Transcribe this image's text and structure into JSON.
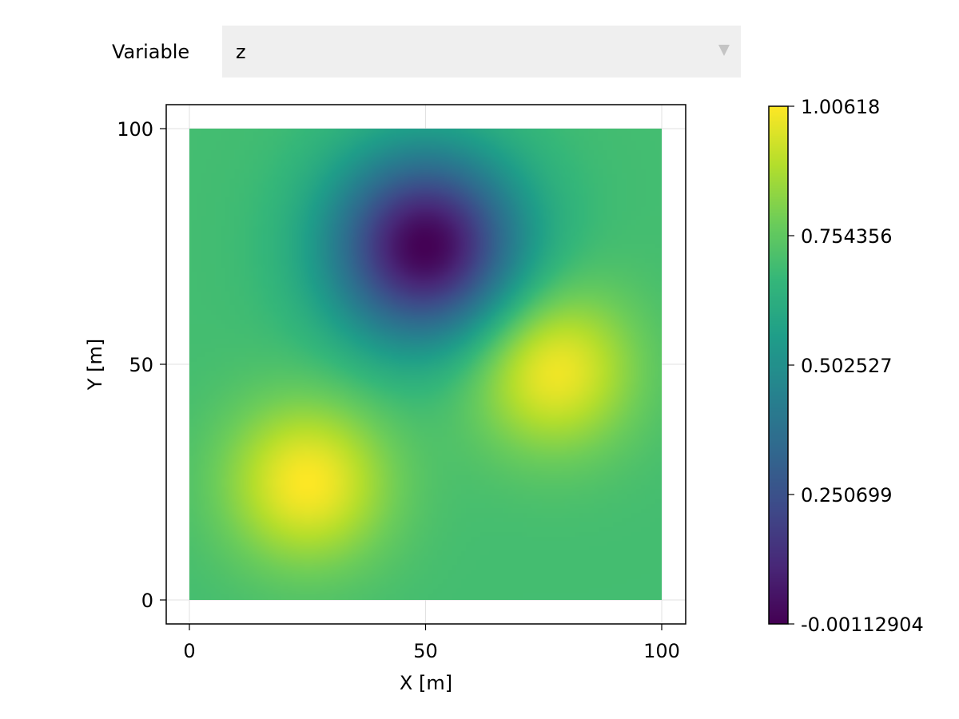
{
  "menu": {
    "label": "Variable",
    "selected": "z"
  },
  "chart_data": {
    "type": "heatmap",
    "title": "",
    "xlabel": "X [m]",
    "ylabel": "Y [m]",
    "x_range": [
      0,
      100
    ],
    "y_range": [
      0,
      100
    ],
    "xticks": [
      "0",
      "50",
      "100"
    ],
    "yticks": [
      "0",
      "50",
      "100"
    ],
    "grid": true,
    "colormap": "viridis",
    "colorbar": {
      "range": [
        -0.00112904,
        1.00618
      ],
      "ticks": [
        "1.00618",
        "0.754356",
        "0.502527",
        "0.250699",
        "-0.00112904"
      ]
    },
    "features": [
      {
        "kind": "peak",
        "x": 25,
        "y": 25,
        "value": 1.00618
      },
      {
        "kind": "peak",
        "x": 77,
        "y": 49,
        "value": 1.0
      },
      {
        "kind": "trough",
        "x": 50,
        "y": 75,
        "value": -0.00112904
      }
    ],
    "background_value": 0.7
  }
}
